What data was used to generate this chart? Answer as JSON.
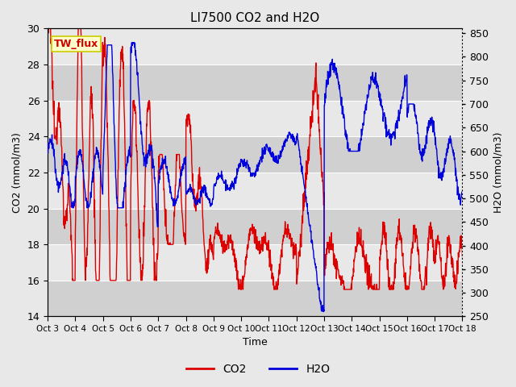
{
  "title": "LI7500 CO2 and H2O",
  "xlabel": "Time",
  "ylabel_left": "CO2 (mmol/m3)",
  "ylabel_right": "H2O (mmol/m3)",
  "xlim": [
    0,
    15
  ],
  "ylim_left": [
    14,
    30
  ],
  "ylim_right": [
    250,
    860
  ],
  "xtick_labels": [
    "Oct 3",
    "Oct 4",
    "Oct 5",
    "Oct 6",
    "Oct 7",
    "Oct 8",
    "Oct 9",
    "Oct 10",
    "Oct 11",
    "Oct 12",
    "Oct 13",
    "Oct 14",
    "Oct 15",
    "Oct 16",
    "Oct 17",
    "Oct 18"
  ],
  "yticks_left": [
    14,
    16,
    18,
    20,
    22,
    24,
    26,
    28,
    30
  ],
  "yticks_right": [
    250,
    300,
    350,
    400,
    450,
    500,
    550,
    600,
    650,
    700,
    750,
    800,
    850
  ],
  "legend_labels": [
    "CO2",
    "H2O"
  ],
  "legend_colors": [
    "#cc0000",
    "#0000cc"
  ],
  "text_box_label": "TW_flux",
  "text_box_color": "#ffffcc",
  "text_box_border": "#cccc00",
  "text_box_text_color": "#cc0000",
  "background_color": "#e8e8e8",
  "plot_bg_color_light": "#e8e8e8",
  "plot_bg_color_dark": "#d0d0d0",
  "grid_color": "#ffffff",
  "line_width": 1.0,
  "co2_color": "#dd0000",
  "h2o_color": "#0000dd"
}
